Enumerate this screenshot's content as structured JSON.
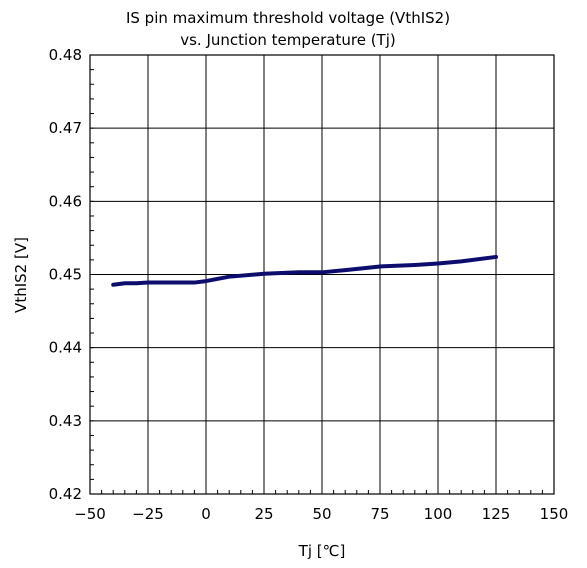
{
  "chart_data": {
    "type": "line",
    "title": "IS pin maximum threshold voltage (VthIS2)",
    "subtitle": "vs. Junction temperature (Tj)",
    "xlabel": "Tj [℃]",
    "ylabel": "VthIS2 [V]",
    "xlim": [
      -50,
      150
    ],
    "ylim": [
      0.42,
      0.48
    ],
    "xticks": [
      -50,
      -25,
      0,
      25,
      50,
      75,
      100,
      125,
      150
    ],
    "yticks": [
      0.42,
      0.43,
      0.44,
      0.45,
      0.46,
      0.47,
      0.48
    ],
    "xtick_labels": [
      "−50",
      "−25",
      "0",
      "25",
      "50",
      "75",
      "100",
      "125",
      "150"
    ],
    "ytick_labels": [
      "0.42",
      "0.43",
      "0.44",
      "0.45",
      "0.46",
      "0.47",
      "0.48"
    ],
    "grid": true,
    "series": [
      {
        "color": "#0d0d6e",
        "x": [
          -40,
          -35,
          -30,
          -25,
          -20,
          -15,
          -10,
          -5,
          0,
          10,
          25,
          40,
          50,
          60,
          75,
          90,
          100,
          110,
          125
        ],
        "y": [
          0.4486,
          0.4488,
          0.4488,
          0.4489,
          0.4489,
          0.4489,
          0.4489,
          0.4489,
          0.4491,
          0.4497,
          0.4501,
          0.4503,
          0.4503,
          0.4506,
          0.4511,
          0.4513,
          0.4515,
          0.4518,
          0.4524
        ]
      }
    ]
  }
}
